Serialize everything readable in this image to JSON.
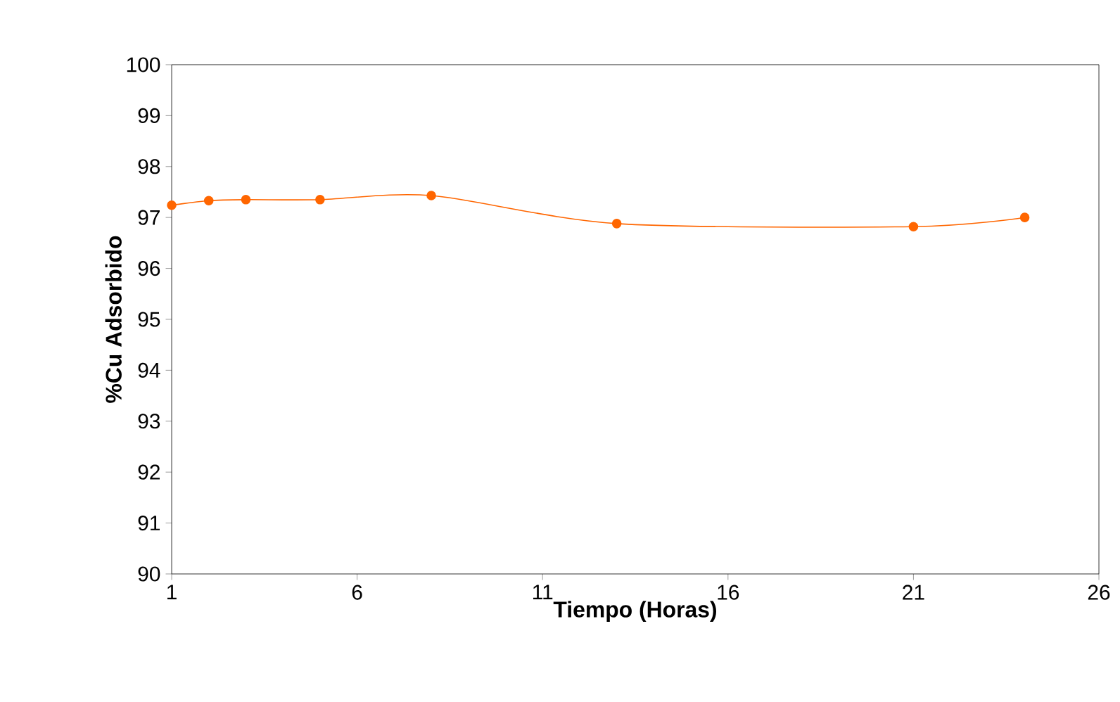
{
  "chart_data": {
    "type": "line",
    "xlabel": "Tiempo (Horas)",
    "ylabel": "%Cu Adsorbido",
    "x": [
      1,
      2,
      3,
      5,
      8,
      13,
      21,
      24
    ],
    "values": [
      97.24,
      97.33,
      97.35,
      97.35,
      97.43,
      96.88,
      96.82,
      97.0
    ],
    "color": "#ff6600",
    "marker": "circle",
    "xlim": [
      1,
      26
    ],
    "ylim": [
      90,
      100
    ],
    "xticks": [
      1,
      6,
      11,
      16,
      21,
      26
    ],
    "yticks": [
      90,
      91,
      92,
      93,
      94,
      95,
      96,
      97,
      98,
      99,
      100
    ]
  }
}
